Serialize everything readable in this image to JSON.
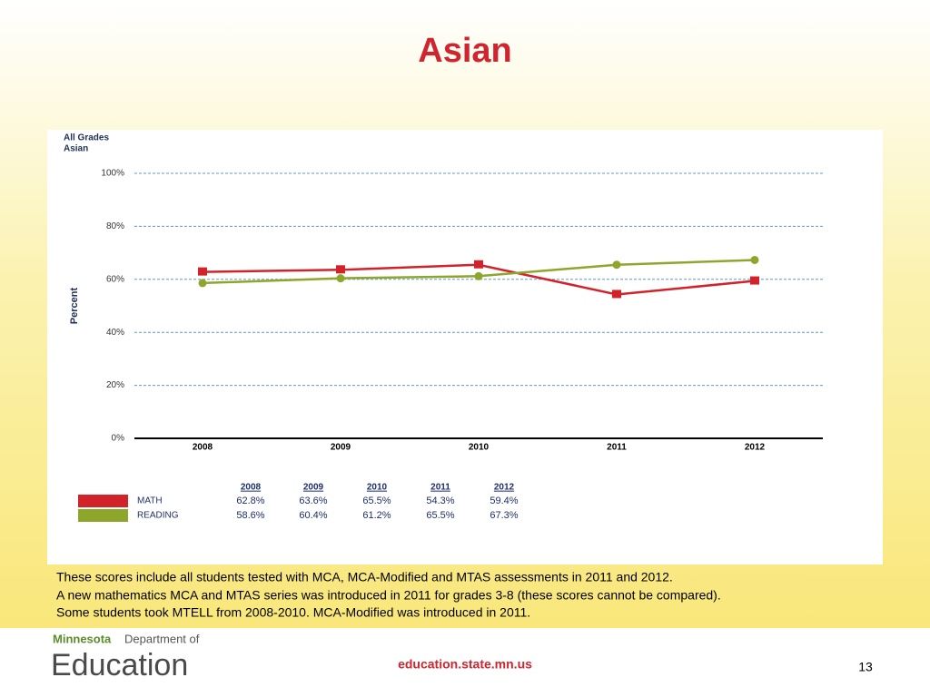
{
  "header": {
    "title": "Asian"
  },
  "chart_data": {
    "type": "line",
    "subtitle": [
      "All Grades",
      "Asian"
    ],
    "y_label": "Percent",
    "categories": [
      "2008",
      "2009",
      "2010",
      "2011",
      "2012"
    ],
    "series": [
      {
        "name": "MATH",
        "color": "#d2232a",
        "marker": "square",
        "values": [
          62.8,
          63.6,
          65.5,
          54.3,
          59.4
        ],
        "value_labels": [
          "62.8%",
          "63.6%",
          "65.5%",
          "54.3%",
          "59.4%"
        ]
      },
      {
        "name": "READING",
        "color": "#8ea62b",
        "marker": "circle",
        "values": [
          58.6,
          60.4,
          61.2,
          65.5,
          67.3
        ],
        "value_labels": [
          "58.6%",
          "60.4%",
          "61.2%",
          "65.5%",
          "67.3%"
        ]
      }
    ],
    "ylim": [
      0,
      100
    ],
    "yticks": [
      {
        "value": 0,
        "label": "0%"
      },
      {
        "value": 20,
        "label": "20%"
      },
      {
        "value": 40,
        "label": "40%"
      },
      {
        "value": 60,
        "label": "60%"
      },
      {
        "value": 80,
        "label": "80%"
      },
      {
        "value": 100,
        "label": "100%"
      }
    ],
    "grid": true
  },
  "notes": [
    "These scores include all students tested with MCA, MCA-Modified and MTAS assessments in 2011 and 2012.",
    "A new mathematics MCA and MTAS series was introduced in 2011 for grades 3-8 (these scores cannot be compared).",
    "Some students took MTELL from 2008-2010.  MCA-Modified was introduced in 2011."
  ],
  "footer": {
    "logo_state": "Minnesota",
    "logo_dept": "Department of",
    "logo_main": "Education",
    "url": "education.state.mn.us",
    "page": "13"
  }
}
